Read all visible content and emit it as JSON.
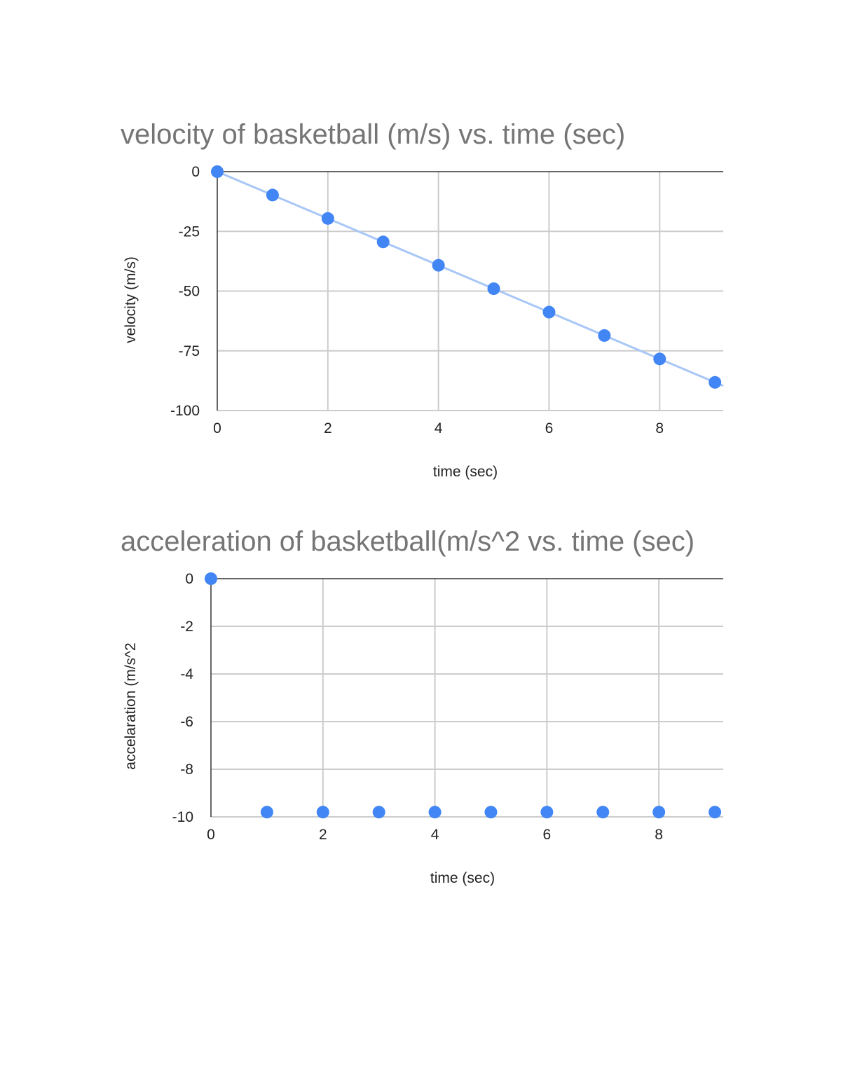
{
  "chart_data": [
    {
      "type": "scatter",
      "title": "velocity of basketball (m/s) vs. time (sec)",
      "xlabel": "time (sec)",
      "ylabel": "velocity (m/s)",
      "xlim": [
        0,
        9.15
      ],
      "ylim": [
        -100,
        0
      ],
      "x_ticks": [
        0,
        2,
        4,
        6,
        8
      ],
      "y_ticks": [
        0,
        -25,
        -50,
        -75,
        -100
      ],
      "grid": true,
      "trendline": true,
      "point_color": "#4285f4",
      "trendline_color": "#a8c7f7",
      "series": [
        {
          "x": [
            0,
            1,
            2,
            3,
            4,
            5,
            6,
            7,
            8,
            9
          ],
          "y": [
            0,
            -9.8,
            -19.6,
            -29.4,
            -39.2,
            -49,
            -58.8,
            -68.6,
            -78.4,
            -88.2
          ]
        }
      ]
    },
    {
      "type": "scatter",
      "title": "acceleration of basketball(m/s^2 vs. time (sec)",
      "xlabel": "time (sec)",
      "ylabel": "accelaration (m/s^2",
      "xlim": [
        0,
        9.15
      ],
      "ylim": [
        -10,
        0
      ],
      "x_ticks": [
        0,
        2,
        4,
        6,
        8
      ],
      "y_ticks": [
        0,
        -2,
        -4,
        -6,
        -8,
        -10
      ],
      "grid": true,
      "trendline": false,
      "point_color": "#4285f4",
      "series": [
        {
          "x": [
            0,
            1,
            2,
            3,
            4,
            5,
            6,
            7,
            8,
            9
          ],
          "y": [
            0,
            -9.8,
            -9.8,
            -9.8,
            -9.8,
            -9.8,
            -9.8,
            -9.8,
            -9.8,
            -9.8
          ]
        }
      ]
    }
  ]
}
